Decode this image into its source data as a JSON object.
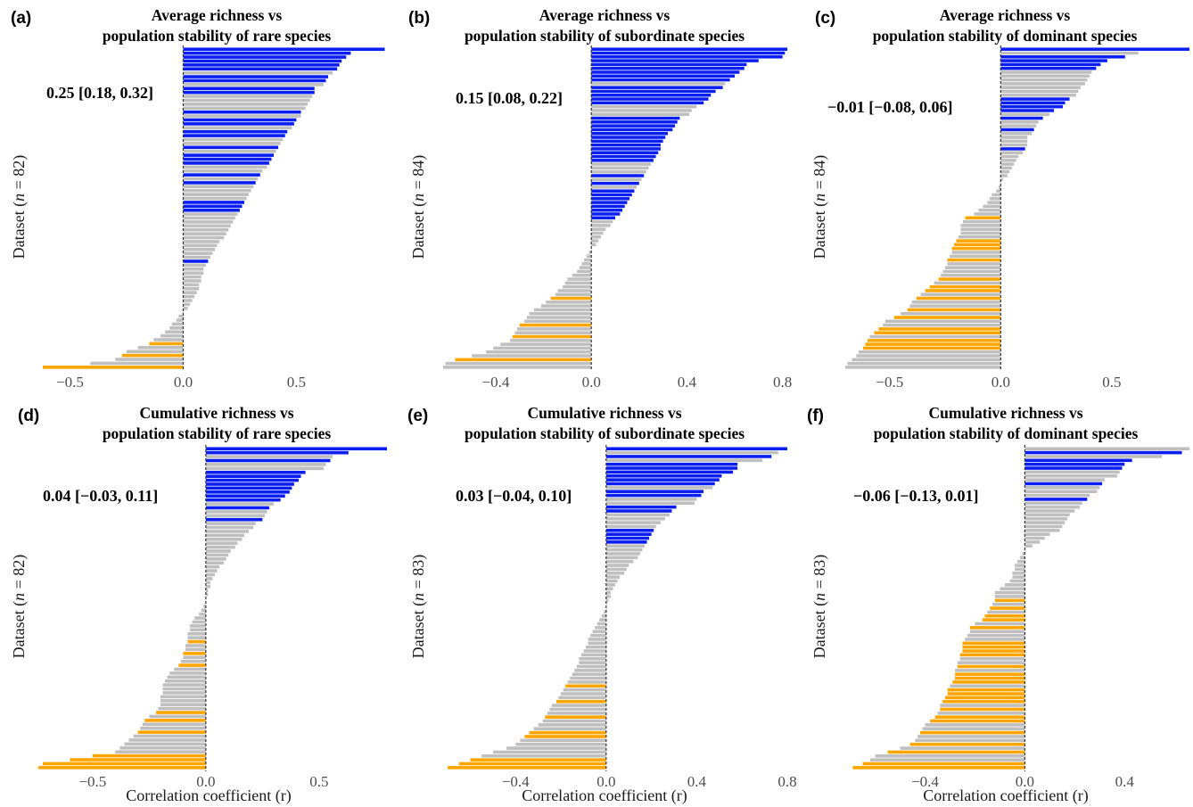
{
  "colors": {
    "positive": "#0a1ef0",
    "neutral": "#bfbfbf",
    "negative": "#ffa500",
    "zero_line": "#333333"
  },
  "legend_note": "bars coloured by sign/significance: blue = significantly positive, grey = not significant, orange = significantly negative",
  "common": {
    "xlabel": "Correlation coefficient (r)"
  },
  "chart_data": [
    {
      "type": "bar",
      "orientation": "horizontal",
      "panel": "(a)",
      "title_line1": "Average richness vs",
      "title_line2": "population stability of rare species",
      "ylabel_pre": "Dataset (",
      "ylabel_n": "n",
      "ylabel_post": " = 82)",
      "summary": "0.25 [0.18, 0.32]",
      "xlim": [
        -0.62,
        0.9
      ],
      "xticks": [
        -0.5,
        0.0,
        0.5
      ],
      "xtick_labels": [
        "−0.5",
        "0.0",
        "0.5"
      ],
      "values": [
        0.89,
        0.74,
        0.72,
        0.7,
        0.69,
        0.68,
        0.66,
        0.64,
        0.63,
        0.62,
        0.58,
        0.58,
        0.57,
        0.56,
        0.55,
        0.54,
        0.52,
        0.52,
        0.5,
        0.49,
        0.48,
        0.46,
        0.45,
        0.44,
        0.43,
        0.42,
        0.41,
        0.4,
        0.39,
        0.38,
        0.37,
        0.35,
        0.34,
        0.33,
        0.32,
        0.31,
        0.3,
        0.29,
        0.28,
        0.27,
        0.26,
        0.25,
        0.24,
        0.23,
        0.22,
        0.21,
        0.2,
        0.19,
        0.18,
        0.16,
        0.15,
        0.14,
        0.13,
        0.12,
        0.11,
        0.1,
        0.09,
        0.09,
        0.08,
        0.08,
        0.07,
        0.07,
        0.06,
        0.05,
        0.04,
        0.03,
        0.02,
        0.0,
        -0.02,
        -0.03,
        -0.05,
        -0.06,
        -0.08,
        -0.1,
        -0.13,
        -0.15,
        -0.2,
        -0.25,
        -0.27,
        -0.3,
        -0.41,
        -0.62
      ],
      "colors": [
        "b",
        "b",
        "b",
        "b",
        "b",
        "b",
        "g",
        "b",
        "b",
        "g",
        "b",
        "b",
        "g",
        "g",
        "g",
        "g",
        "b",
        "g",
        "b",
        "b",
        "g",
        "b",
        "b",
        "g",
        "g",
        "b",
        "g",
        "b",
        "b",
        "b",
        "g",
        "g",
        "b",
        "g",
        "b",
        "g",
        "g",
        "g",
        "g",
        "b",
        "b",
        "b",
        "g",
        "g",
        "g",
        "g",
        "g",
        "g",
        "g",
        "g",
        "g",
        "g",
        "g",
        "g",
        "b",
        "g",
        "g",
        "g",
        "g",
        "g",
        "g",
        "g",
        "g",
        "g",
        "g",
        "g",
        "g",
        "g",
        "g",
        "g",
        "g",
        "g",
        "g",
        "g",
        "g",
        "o",
        "g",
        "g",
        "o",
        "g",
        "g",
        "o"
      ]
    },
    {
      "type": "bar",
      "orientation": "horizontal",
      "panel": "(b)",
      "title_line1": "Average richness vs",
      "title_line2": "population stability of subordinate species",
      "ylabel_pre": "Dataset (",
      "ylabel_n": "n",
      "ylabel_post": " = 84)",
      "summary": "0.15 [0.08, 0.22]",
      "xlim": [
        -0.62,
        0.82
      ],
      "xticks": [
        -0.4,
        0.0,
        0.4,
        0.8
      ],
      "xtick_labels": [
        "−0.4",
        "0.0",
        "0.4",
        "0.8"
      ],
      "values": [
        0.82,
        0.81,
        0.8,
        0.7,
        0.65,
        0.64,
        0.62,
        0.6,
        0.58,
        0.56,
        0.55,
        0.52,
        0.5,
        0.49,
        0.47,
        0.44,
        0.42,
        0.41,
        0.37,
        0.36,
        0.35,
        0.34,
        0.32,
        0.31,
        0.3,
        0.29,
        0.29,
        0.28,
        0.27,
        0.26,
        0.25,
        0.24,
        0.23,
        0.22,
        0.21,
        0.2,
        0.19,
        0.18,
        0.17,
        0.16,
        0.15,
        0.14,
        0.13,
        0.12,
        0.1,
        0.09,
        0.08,
        0.06,
        0.05,
        0.04,
        0.03,
        0.02,
        0.0,
        -0.01,
        -0.02,
        -0.03,
        -0.04,
        -0.05,
        -0.06,
        -0.08,
        -0.1,
        -0.11,
        -0.12,
        -0.14,
        -0.15,
        -0.17,
        -0.19,
        -0.21,
        -0.24,
        -0.26,
        -0.27,
        -0.28,
        -0.3,
        -0.31,
        -0.32,
        -0.33,
        -0.34,
        -0.38,
        -0.41,
        -0.44,
        -0.5,
        -0.57,
        -0.61,
        -0.62
      ],
      "colors": [
        "b",
        "b",
        "b",
        "b",
        "b",
        "b",
        "b",
        "b",
        "b",
        "g",
        "b",
        "b",
        "b",
        "b",
        "b",
        "g",
        "g",
        "g",
        "b",
        "b",
        "b",
        "b",
        "b",
        "b",
        "b",
        "b",
        "b",
        "b",
        "b",
        "b",
        "g",
        "g",
        "g",
        "b",
        "g",
        "b",
        "g",
        "b",
        "b",
        "b",
        "b",
        "b",
        "b",
        "b",
        "b",
        "g",
        "g",
        "g",
        "g",
        "g",
        "g",
        "g",
        "g",
        "g",
        "g",
        "g",
        "g",
        "g",
        "g",
        "g",
        "g",
        "g",
        "g",
        "g",
        "g",
        "o",
        "g",
        "g",
        "g",
        "g",
        "g",
        "g",
        "o",
        "g",
        "g",
        "o",
        "g",
        "g",
        "g",
        "g",
        "g",
        "o",
        "g",
        "g"
      ]
    },
    {
      "type": "bar",
      "orientation": "horizontal",
      "panel": "(c)",
      "title_line1": "Average richness vs",
      "title_line2": "population stability of dominant species",
      "ylabel_pre": "Dataset (",
      "ylabel_n": "n",
      "ylabel_post": " = 84)",
      "summary": "−0.01 [−0.08, 0.06]",
      "xlim": [
        -0.7,
        0.85
      ],
      "xticks": [
        -0.5,
        0.0,
        0.5
      ],
      "xtick_labels": [
        "−0.5",
        "0.0",
        "0.5"
      ],
      "values": [
        0.85,
        0.62,
        0.56,
        0.48,
        0.45,
        0.43,
        0.41,
        0.4,
        0.39,
        0.38,
        0.36,
        0.35,
        0.34,
        0.31,
        0.29,
        0.28,
        0.24,
        0.22,
        0.19,
        0.17,
        0.16,
        0.15,
        0.14,
        0.12,
        0.12,
        0.12,
        0.11,
        0.1,
        0.08,
        0.07,
        0.06,
        0.05,
        0.04,
        0.03,
        0.01,
        0.0,
        -0.01,
        -0.02,
        -0.04,
        -0.05,
        -0.06,
        -0.08,
        -0.1,
        -0.12,
        -0.16,
        -0.17,
        -0.18,
        -0.18,
        -0.18,
        -0.19,
        -0.2,
        -0.21,
        -0.22,
        -0.22,
        -0.23,
        -0.24,
        -0.24,
        -0.25,
        -0.26,
        -0.27,
        -0.28,
        -0.3,
        -0.32,
        -0.34,
        -0.36,
        -0.38,
        -0.4,
        -0.41,
        -0.42,
        -0.45,
        -0.48,
        -0.52,
        -0.53,
        -0.55,
        -0.57,
        -0.59,
        -0.6,
        -0.61,
        -0.62,
        -0.64,
        -0.65,
        -0.67,
        -0.69,
        -0.7
      ],
      "colors": [
        "b",
        "g",
        "b",
        "b",
        "b",
        "b",
        "g",
        "g",
        "g",
        "g",
        "g",
        "g",
        "g",
        "b",
        "b",
        "b",
        "b",
        "g",
        "b",
        "g",
        "g",
        "b",
        "g",
        "g",
        "g",
        "g",
        "b",
        "g",
        "g",
        "g",
        "g",
        "g",
        "g",
        "g",
        "g",
        "g",
        "g",
        "g",
        "g",
        "g",
        "g",
        "g",
        "g",
        "g",
        "o",
        "g",
        "g",
        "g",
        "g",
        "g",
        "o",
        "o",
        "o",
        "g",
        "g",
        "o",
        "g",
        "g",
        "g",
        "g",
        "o",
        "g",
        "o",
        "o",
        "g",
        "o",
        "g",
        "g",
        "o",
        "g",
        "o",
        "g",
        "g",
        "o",
        "o",
        "g",
        "o",
        "o",
        "o",
        "g",
        "g",
        "g",
        "g",
        "g"
      ]
    },
    {
      "type": "bar",
      "orientation": "horizontal",
      "panel": "(d)",
      "title_line1": "Cumulative richness vs",
      "title_line2": "population stability of rare species",
      "ylabel_pre": "Dataset (",
      "ylabel_n": "n",
      "ylabel_post": " = 82)",
      "summary": "0.04 [−0.03, 0.11]",
      "xlim": [
        -0.72,
        0.8
      ],
      "xticks": [
        -0.5,
        0.0,
        0.5
      ],
      "xtick_labels": [
        "−0.5",
        "0.0",
        "0.5"
      ],
      "values": [
        0.8,
        0.63,
        0.56,
        0.55,
        0.53,
        0.52,
        0.44,
        0.42,
        0.41,
        0.39,
        0.38,
        0.37,
        0.35,
        0.33,
        0.3,
        0.28,
        0.27,
        0.26,
        0.25,
        0.22,
        0.21,
        0.19,
        0.17,
        0.16,
        0.14,
        0.13,
        0.11,
        0.1,
        0.09,
        0.08,
        0.06,
        0.05,
        0.04,
        0.03,
        0.02,
        0.02,
        0.01,
        0.01,
        0.0,
        0.0,
        -0.01,
        -0.02,
        -0.03,
        -0.05,
        -0.06,
        -0.07,
        -0.07,
        -0.08,
        -0.08,
        -0.08,
        -0.09,
        -0.09,
        -0.1,
        -0.1,
        -0.11,
        -0.12,
        -0.14,
        -0.16,
        -0.17,
        -0.18,
        -0.19,
        -0.19,
        -0.19,
        -0.2,
        -0.2,
        -0.2,
        -0.21,
        -0.22,
        -0.25,
        -0.27,
        -0.28,
        -0.29,
        -0.3,
        -0.32,
        -0.34,
        -0.36,
        -0.38,
        -0.4,
        -0.5,
        -0.6,
        -0.72,
        -0.74
      ],
      "colors": [
        "b",
        "b",
        "g",
        "b",
        "g",
        "g",
        "b",
        "b",
        "b",
        "b",
        "b",
        "b",
        "b",
        "b",
        "g",
        "b",
        "g",
        "g",
        "b",
        "g",
        "g",
        "g",
        "g",
        "g",
        "g",
        "g",
        "g",
        "g",
        "g",
        "g",
        "g",
        "g",
        "g",
        "g",
        "g",
        "g",
        "g",
        "g",
        "g",
        "g",
        "g",
        "g",
        "g",
        "g",
        "g",
        "g",
        "g",
        "g",
        "g",
        "o",
        "g",
        "g",
        "o",
        "g",
        "g",
        "o",
        "g",
        "g",
        "g",
        "g",
        "g",
        "g",
        "g",
        "g",
        "g",
        "g",
        "g",
        "o",
        "g",
        "o",
        "g",
        "g",
        "o",
        "g",
        "g",
        "g",
        "g",
        "g",
        "o",
        "o",
        "o",
        "o"
      ]
    },
    {
      "type": "bar",
      "orientation": "horizontal",
      "panel": "(e)",
      "title_line1": "Cumulative richness vs",
      "title_line2": "population stability of subordinate species",
      "ylabel_pre": "Dataset (",
      "ylabel_n": "n",
      "ylabel_post": " = 83)",
      "summary": "0.03 [−0.04, 0.10]",
      "xlim": [
        -0.72,
        0.8
      ],
      "xticks": [
        -0.4,
        0.0,
        0.4,
        0.8
      ],
      "xtick_labels": [
        "−0.4",
        "0.0",
        "0.4",
        "0.8"
      ],
      "values": [
        0.8,
        0.76,
        0.73,
        0.69,
        0.58,
        0.58,
        0.56,
        0.51,
        0.5,
        0.48,
        0.47,
        0.43,
        0.42,
        0.4,
        0.39,
        0.31,
        0.29,
        0.28,
        0.26,
        0.24,
        0.22,
        0.21,
        0.2,
        0.19,
        0.18,
        0.17,
        0.16,
        0.15,
        0.14,
        0.12,
        0.1,
        0.09,
        0.08,
        0.06,
        0.05,
        0.04,
        0.03,
        0.02,
        0.02,
        0.01,
        0.0,
        0.0,
        -0.01,
        -0.02,
        -0.03,
        -0.04,
        -0.05,
        -0.06,
        -0.07,
        -0.08,
        -0.08,
        -0.09,
        -0.1,
        -0.11,
        -0.12,
        -0.12,
        -0.13,
        -0.14,
        -0.15,
        -0.16,
        -0.17,
        -0.18,
        -0.19,
        -0.2,
        -0.21,
        -0.22,
        -0.24,
        -0.25,
        -0.26,
        -0.27,
        -0.28,
        -0.3,
        -0.32,
        -0.34,
        -0.36,
        -0.38,
        -0.4,
        -0.44,
        -0.5,
        -0.55,
        -0.6,
        -0.65,
        -0.7
      ],
      "colors": [
        "b",
        "g",
        "b",
        "g",
        "b",
        "b",
        "b",
        "b",
        "b",
        "b",
        "g",
        "b",
        "b",
        "g",
        "g",
        "b",
        "b",
        "g",
        "g",
        "g",
        "g",
        "b",
        "b",
        "b",
        "b",
        "g",
        "g",
        "g",
        "g",
        "g",
        "g",
        "g",
        "g",
        "g",
        "g",
        "g",
        "g",
        "g",
        "g",
        "g",
        "g",
        "g",
        "g",
        "g",
        "g",
        "g",
        "g",
        "g",
        "g",
        "g",
        "g",
        "g",
        "g",
        "g",
        "g",
        "g",
        "g",
        "g",
        "g",
        "g",
        "g",
        "o",
        "g",
        "g",
        "g",
        "o",
        "g",
        "g",
        "g",
        "o",
        "g",
        "g",
        "g",
        "o",
        "o",
        "g",
        "g",
        "g",
        "g",
        "g",
        "o",
        "o",
        "o"
      ]
    },
    {
      "type": "bar",
      "orientation": "horizontal",
      "panel": "(f)",
      "title_line1": "Cumulative richness vs",
      "title_line2": "population stability of dominant species",
      "ylabel_pre": "Dataset (",
      "ylabel_n": "n",
      "ylabel_post": " = 83)",
      "summary": "−0.06 [−0.13, 0.01]",
      "xlim": [
        -0.72,
        0.66
      ],
      "xticks": [
        -0.4,
        0.0,
        0.4
      ],
      "xtick_labels": [
        "−0.4",
        "0.0",
        "0.4"
      ],
      "values": [
        0.66,
        0.63,
        0.55,
        0.43,
        0.4,
        0.39,
        0.38,
        0.37,
        0.32,
        0.31,
        0.3,
        0.29,
        0.26,
        0.25,
        0.23,
        0.22,
        0.2,
        0.18,
        0.17,
        0.16,
        0.15,
        0.14,
        0.1,
        0.08,
        0.06,
        0.03,
        0.0,
        -0.01,
        -0.02,
        -0.03,
        -0.04,
        -0.04,
        -0.05,
        -0.05,
        -0.06,
        -0.08,
        -0.1,
        -0.12,
        -0.12,
        -0.12,
        -0.13,
        -0.14,
        -0.15,
        -0.16,
        -0.17,
        -0.2,
        -0.22,
        -0.22,
        -0.23,
        -0.24,
        -0.25,
        -0.25,
        -0.25,
        -0.26,
        -0.26,
        -0.27,
        -0.27,
        -0.28,
        -0.28,
        -0.28,
        -0.29,
        -0.3,
        -0.31,
        -0.31,
        -0.32,
        -0.33,
        -0.34,
        -0.34,
        -0.35,
        -0.36,
        -0.38,
        -0.4,
        -0.41,
        -0.42,
        -0.43,
        -0.44,
        -0.46,
        -0.5,
        -0.55,
        -0.6,
        -0.62,
        -0.65,
        -0.69
      ],
      "colors": [
        "g",
        "b",
        "g",
        "b",
        "b",
        "b",
        "g",
        "g",
        "g",
        "b",
        "g",
        "g",
        "g",
        "b",
        "g",
        "g",
        "g",
        "g",
        "g",
        "g",
        "g",
        "g",
        "g",
        "g",
        "g",
        "g",
        "g",
        "g",
        "g",
        "g",
        "g",
        "g",
        "g",
        "g",
        "g",
        "g",
        "g",
        "g",
        "g",
        "o",
        "g",
        "o",
        "g",
        "o",
        "o",
        "g",
        "o",
        "g",
        "g",
        "g",
        "o",
        "o",
        "o",
        "o",
        "g",
        "g",
        "o",
        "g",
        "o",
        "o",
        "o",
        "g",
        "o",
        "o",
        "o",
        "o",
        "g",
        "o",
        "g",
        "o",
        "o",
        "g",
        "g",
        "o",
        "g",
        "g",
        "o",
        "g",
        "o",
        "g",
        "g",
        "o",
        "o"
      ]
    }
  ]
}
